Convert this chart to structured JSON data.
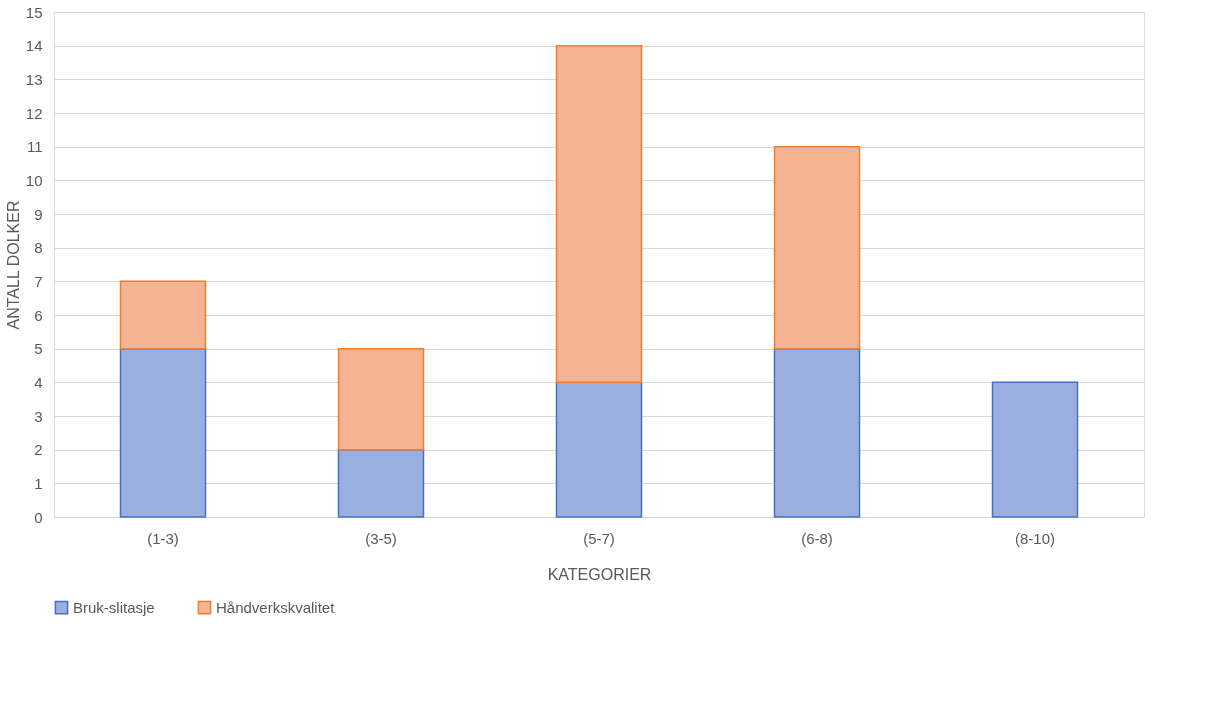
{
  "chart_data": {
    "type": "bar",
    "stacked": true,
    "xlabel": "KATEGORIER",
    "ylabel": "ANTALL DOLKER",
    "categories": [
      "(1-3)",
      "(3-5)",
      "(5-7)",
      "(6-8)",
      "(8-10)"
    ],
    "series": [
      {
        "name": "Bruk-slitasje",
        "color": "#9aaee0",
        "values": [
          5,
          2,
          4,
          5,
          4
        ]
      },
      {
        "name": "Håndverkskvalitet",
        "color": "#f5b391",
        "values": [
          2,
          3,
          10,
          6,
          null
        ]
      }
    ],
    "ylim": [
      0,
      15
    ],
    "yticks": [
      0,
      1,
      2,
      3,
      4,
      5,
      6,
      7,
      8,
      9,
      10,
      11,
      12,
      13,
      14,
      15
    ],
    "grid": "y",
    "legend": "bottom"
  }
}
